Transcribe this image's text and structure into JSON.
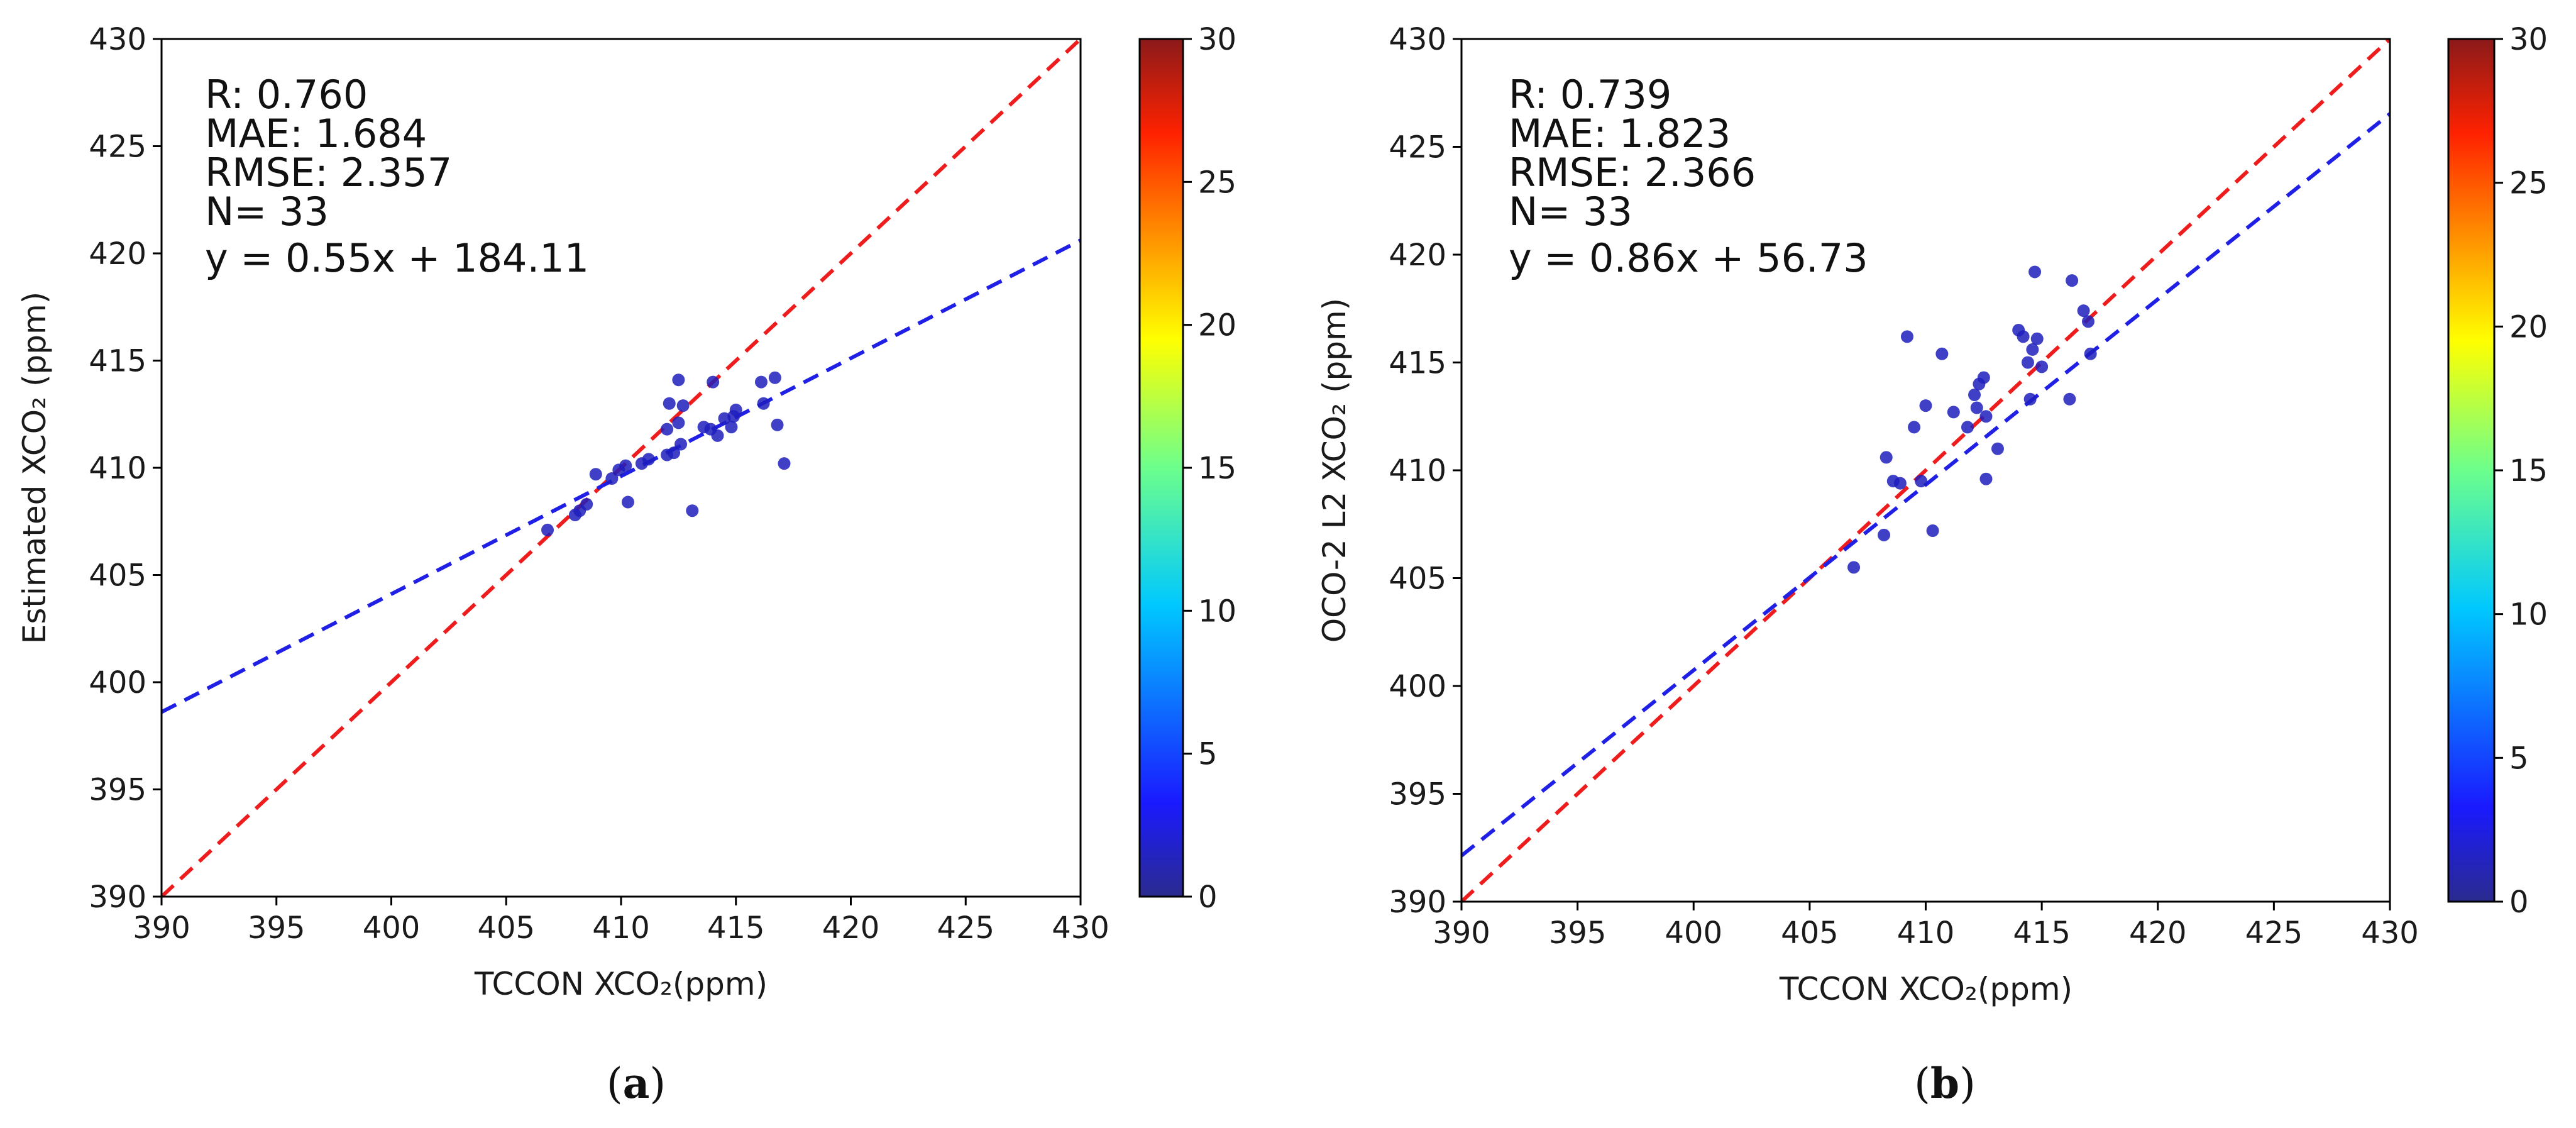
{
  "chart_data": [
    {
      "type": "scatter",
      "panel_label": "a",
      "xlabel": "TCCON XCO₂(ppm)",
      "ylabel": "Estimated XCO₂ (ppm)",
      "xlim": [
        390,
        430
      ],
      "ylim": [
        390,
        430
      ],
      "ticks": [
        390,
        395,
        400,
        405,
        410,
        415,
        420,
        425,
        430
      ],
      "stats": [
        "R: 0.760",
        "MAE: 1.684",
        "RMSE: 2.357",
        "N= 33",
        "y = 0.55x + 184.11"
      ],
      "fit_line": {
        "slope": 0.55,
        "intercept": 184.11,
        "color": "#1f1fe6"
      },
      "identity_line": {
        "color": "#ee1c1c"
      },
      "point_color": "#1e1ebd",
      "colorbar": {
        "min": 0,
        "max": 30,
        "ticks": [
          0,
          5,
          10,
          15,
          20,
          25,
          30
        ]
      },
      "points": [
        [
          406.8,
          407.1
        ],
        [
          408.0,
          407.8
        ],
        [
          408.2,
          408.0
        ],
        [
          408.5,
          408.3
        ],
        [
          408.9,
          409.7
        ],
        [
          409.6,
          409.5
        ],
        [
          409.9,
          409.9
        ],
        [
          410.2,
          410.1
        ],
        [
          410.3,
          408.4
        ],
        [
          410.9,
          410.2
        ],
        [
          411.2,
          410.4
        ],
        [
          412.0,
          410.6
        ],
        [
          412.0,
          411.8
        ],
        [
          412.1,
          413.0
        ],
        [
          412.3,
          410.7
        ],
        [
          412.5,
          412.1
        ],
        [
          412.5,
          414.1
        ],
        [
          412.6,
          411.1
        ],
        [
          412.7,
          412.9
        ],
        [
          413.1,
          408.0
        ],
        [
          413.6,
          411.9
        ],
        [
          413.9,
          411.8
        ],
        [
          414.0,
          414.0
        ],
        [
          414.2,
          411.5
        ],
        [
          414.5,
          412.3
        ],
        [
          414.8,
          411.9
        ],
        [
          414.9,
          412.4
        ],
        [
          415.0,
          412.7
        ],
        [
          416.1,
          414.0
        ],
        [
          416.2,
          413.0
        ],
        [
          416.7,
          414.2
        ],
        [
          416.8,
          412.0
        ],
        [
          417.1,
          410.2
        ]
      ]
    },
    {
      "type": "scatter",
      "panel_label": "b",
      "xlabel": "TCCON XCO₂(ppm)",
      "ylabel": "OCO-2 L2 XCO₂ (ppm)",
      "xlim": [
        390,
        430
      ],
      "ylim": [
        390,
        430
      ],
      "ticks": [
        390,
        395,
        400,
        405,
        410,
        415,
        420,
        425,
        430
      ],
      "stats": [
        "R: 0.739",
        "MAE: 1.823",
        "RMSE: 2.366",
        "N= 33",
        "y = 0.86x + 56.73"
      ],
      "fit_line": {
        "slope": 0.86,
        "intercept": 56.73,
        "color": "#1f1fe6"
      },
      "identity_line": {
        "color": "#ee1c1c"
      },
      "point_color": "#1e1ebd",
      "colorbar": {
        "min": 0,
        "max": 30,
        "ticks": [
          0,
          5,
          10,
          15,
          20,
          25,
          30
        ]
      },
      "points": [
        [
          406.9,
          405.5
        ],
        [
          408.2,
          407.0
        ],
        [
          408.3,
          410.6
        ],
        [
          408.6,
          409.5
        ],
        [
          408.9,
          409.4
        ],
        [
          409.2,
          416.2
        ],
        [
          409.5,
          412.0
        ],
        [
          409.8,
          409.5
        ],
        [
          410.0,
          413.0
        ],
        [
          410.3,
          407.2
        ],
        [
          410.7,
          415.4
        ],
        [
          411.2,
          412.7
        ],
        [
          411.8,
          412.0
        ],
        [
          412.1,
          413.5
        ],
        [
          412.2,
          412.9
        ],
        [
          412.3,
          414.0
        ],
        [
          412.5,
          414.3
        ],
        [
          412.6,
          412.5
        ],
        [
          412.6,
          409.6
        ],
        [
          413.1,
          411.0
        ],
        [
          414.0,
          416.5
        ],
        [
          414.2,
          416.2
        ],
        [
          414.4,
          415.0
        ],
        [
          414.5,
          413.3
        ],
        [
          414.7,
          419.2
        ],
        [
          414.8,
          416.1
        ],
        [
          415.0,
          414.8
        ],
        [
          416.2,
          413.3
        ],
        [
          416.3,
          418.8
        ],
        [
          416.8,
          417.4
        ],
        [
          417.0,
          416.9
        ],
        [
          417.1,
          415.4
        ],
        [
          414.6,
          415.6
        ]
      ]
    }
  ]
}
